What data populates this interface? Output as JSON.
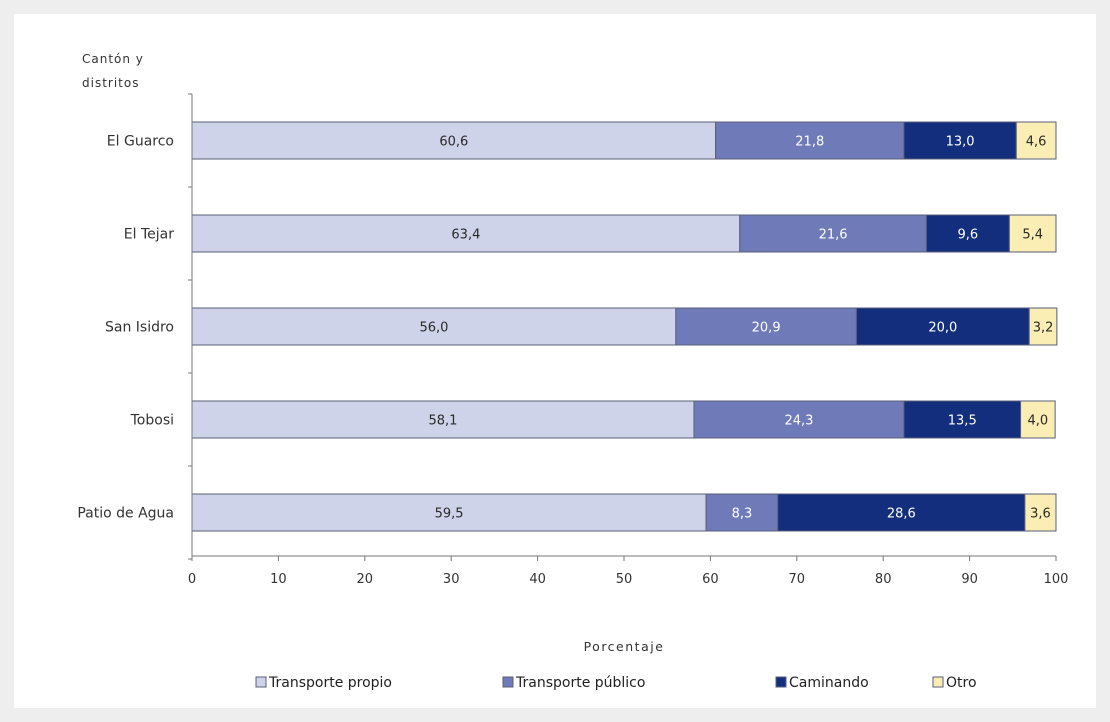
{
  "chart_data": {
    "type": "bar",
    "orientation": "horizontal",
    "stacked": true,
    "ylabel_lines": [
      "Cantón y",
      "distritos"
    ],
    "xlabel": "Porcentaje",
    "categories": [
      "El Guarco",
      "El Tejar",
      "San Isidro",
      "Tobosi",
      "Patio de Agua"
    ],
    "category_labels": [
      "El Guarco",
      "El Tejar",
      "San Isidro",
      "Tobosi",
      "Patio de Agua"
    ],
    "xlim": [
      0,
      100
    ],
    "xticks": [
      "0",
      "10",
      "20",
      "30",
      "40",
      "50",
      "60",
      "70",
      "80",
      "90",
      "100"
    ],
    "legend_position": "bottom",
    "grid": false,
    "series": [
      {
        "name": "Transporte propio",
        "color": "#cfd3e9",
        "label_color": "#2a2a2a",
        "values": [
          60.6,
          63.4,
          56.0,
          58.1,
          59.5
        ],
        "labels": [
          "60,6",
          "63,4",
          "56,0",
          "58,1",
          "59,5"
        ]
      },
      {
        "name": "Transporte público",
        "color": "#6f7bb9",
        "label_color": "#ffffff",
        "values": [
          21.8,
          21.6,
          20.9,
          24.3,
          8.3
        ],
        "labels": [
          "21,8",
          "21,6",
          "20,9",
          "24,3",
          "8,3"
        ]
      },
      {
        "name": "Caminando",
        "color": "#132e7c",
        "label_color": "#ffffff",
        "values": [
          13.0,
          9.6,
          20.0,
          13.5,
          28.6
        ],
        "labels": [
          "13,0",
          "9,6",
          "20,0",
          "13,5",
          "28,6"
        ]
      },
      {
        "name": "Otro",
        "color": "#fbeeb4",
        "label_color": "#2a2a2a",
        "values": [
          4.6,
          5.4,
          3.2,
          4.0,
          3.6
        ],
        "labels": [
          "4,6",
          "5,4",
          "3,2",
          "4,0",
          "3,6"
        ]
      }
    ],
    "legend_labels": [
      "Transporte propio",
      "Transporte público",
      "Caminando",
      "Otro"
    ]
  }
}
